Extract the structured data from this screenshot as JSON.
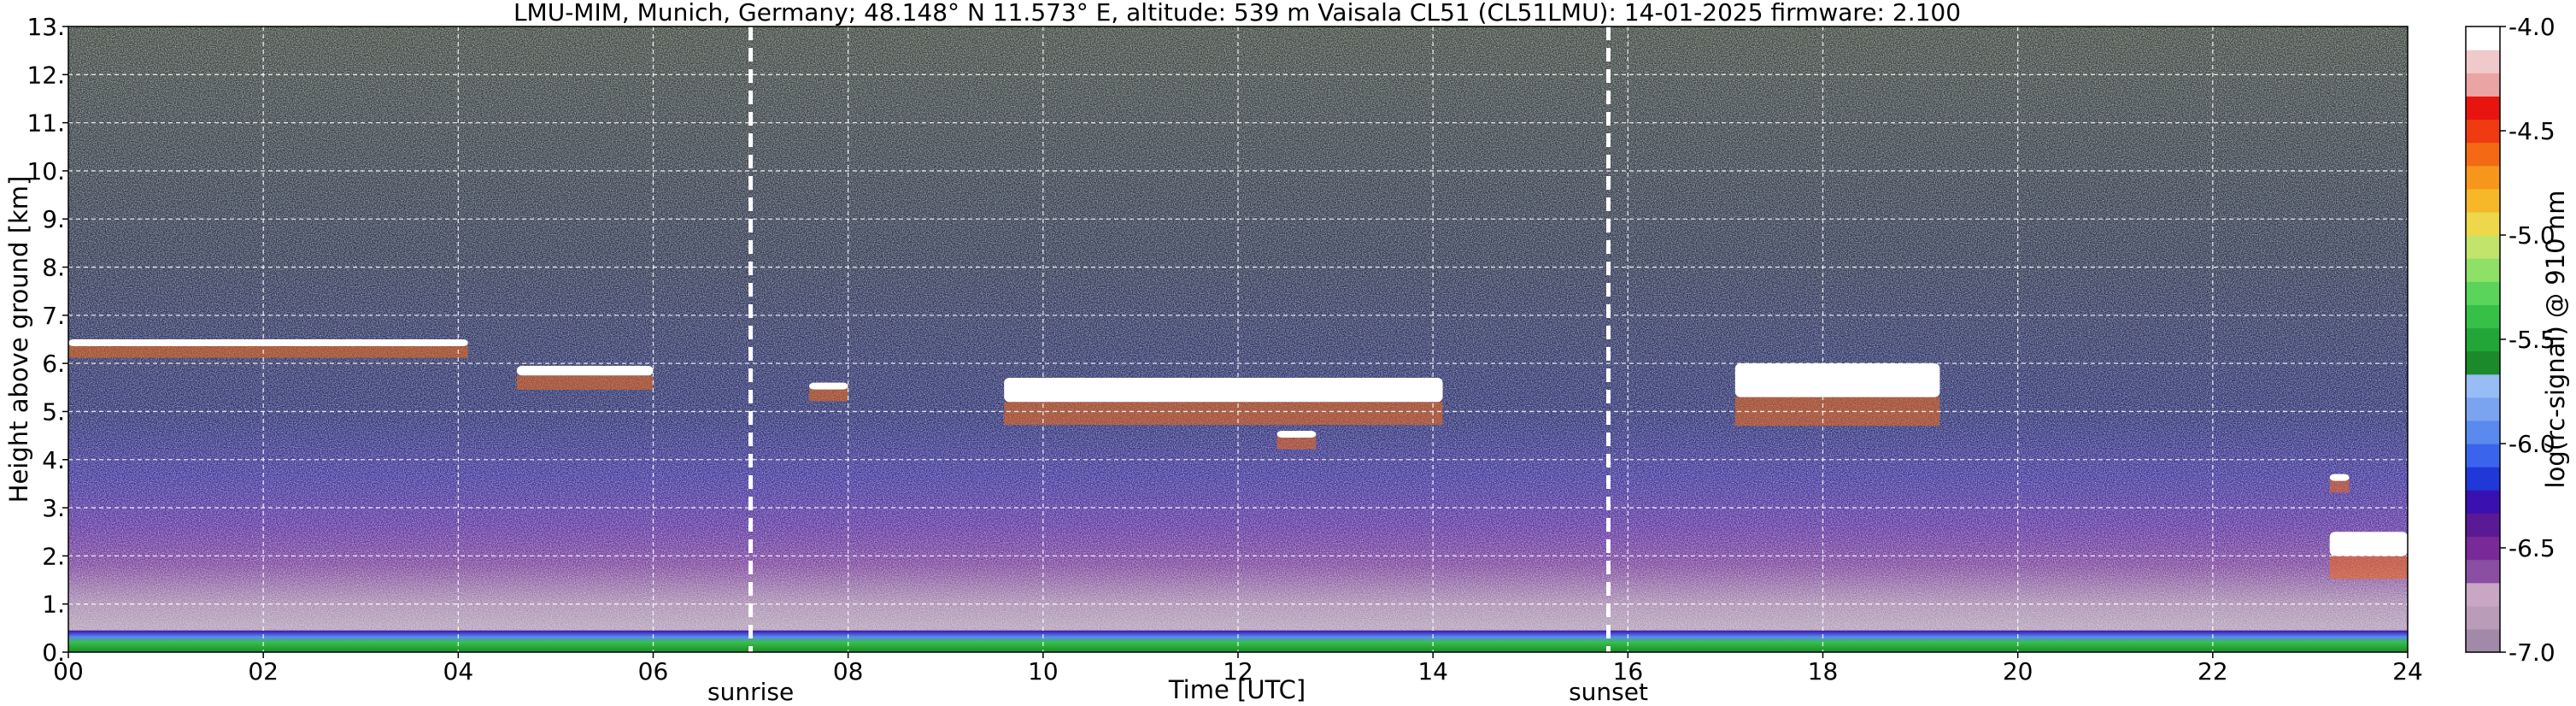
{
  "chart_data": {
    "type": "heatmap",
    "title": "LMU-MIM, Munich, Germany; 48.148° N 11.573° E, altitude: 539 m    Vaisala CL51 (CL51LMU): 14-01-2025    firmware: 2.100",
    "xlabel": "Time [UTC]",
    "ylabel": "Height above ground [km]",
    "xlim": [
      0,
      24
    ],
    "ylim": [
      0,
      13
    ],
    "x_ticks": [
      "00",
      "02",
      "04",
      "06",
      "08",
      "10",
      "12",
      "14",
      "16",
      "18",
      "20",
      "22",
      "24"
    ],
    "y_ticks": [
      "0.",
      "1.",
      "2.",
      "3.",
      "4.",
      "5.",
      "6.",
      "7.",
      "8.",
      "9.",
      "10.",
      "11.",
      "12.",
      "13."
    ],
    "grid": true,
    "annotations": [
      {
        "label": "sunrise",
        "time": 7.0
      },
      {
        "label": "sunset",
        "time": 15.8
      }
    ],
    "colorbar": {
      "label": "log(rc-signal) @ 910 nm",
      "range": [
        -7.0,
        -4.0
      ],
      "ticks": [
        "-4.0",
        "-4.5",
        "-5.0",
        "-5.5",
        "-6.0",
        "-6.5",
        "-7.0"
      ],
      "colors": [
        "#a08aa8",
        "#b89cb8",
        "#c8a6c4",
        "#8a4ea2",
        "#7a2a98",
        "#5a1a94",
        "#3a10b0",
        "#2038d8",
        "#3a64ec",
        "#5a8aee",
        "#7aa4f0",
        "#98bcf4",
        "#1a8a2a",
        "#22a638",
        "#36c048",
        "#5ad45a",
        "#8ee066",
        "#c2e46a",
        "#ecd84a",
        "#f6b828",
        "#f6961a",
        "#f46a14",
        "#f03a12",
        "#e81410",
        "#eaa4a4",
        "#f0caca",
        "#ffffff"
      ]
    },
    "cloud_layers": [
      {
        "t_start": 0.0,
        "t_end": 4.1,
        "base_km": 6.4,
        "top_km": 6.5
      },
      {
        "t_start": 4.6,
        "t_end": 6.0,
        "base_km": 5.75,
        "top_km": 5.95
      },
      {
        "t_start": 7.6,
        "t_end": 8.0,
        "base_km": 5.5,
        "top_km": 5.6
      },
      {
        "t_start": 9.6,
        "t_end": 14.1,
        "base_km": 5.2,
        "top_km": 5.7
      },
      {
        "t_start": 12.4,
        "t_end": 12.8,
        "base_km": 4.5,
        "top_km": 4.6
      },
      {
        "t_start": 17.1,
        "t_end": 19.2,
        "base_km": 5.3,
        "top_km": 6.0
      },
      {
        "t_start": 23.2,
        "t_end": 24.0,
        "base_km": 2.0,
        "top_km": 2.5
      },
      {
        "t_start": 23.2,
        "t_end": 23.4,
        "base_km": 3.6,
        "top_km": 3.7
      }
    ],
    "boundary_layer": {
      "top_km": 0.45
    }
  }
}
